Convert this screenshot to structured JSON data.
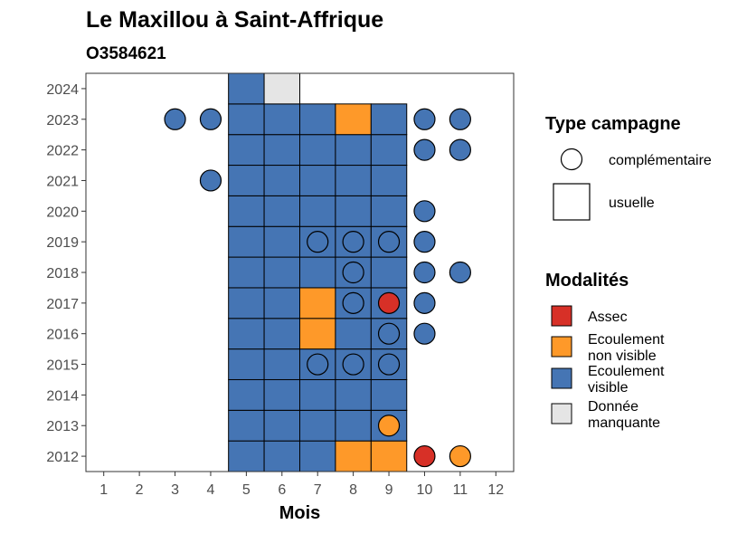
{
  "chart_data": {
    "type": "heatmap",
    "title": "Le Maxillou à Saint-Affrique",
    "subtitle": "O3584621",
    "xlabel": "Mois",
    "ylabel": "",
    "x_ticks": [
      1,
      2,
      3,
      4,
      5,
      6,
      7,
      8,
      9,
      10,
      11,
      12
    ],
    "y_ticks": [
      2012,
      2013,
      2014,
      2015,
      2016,
      2017,
      2018,
      2019,
      2020,
      2021,
      2022,
      2023,
      2024
    ],
    "xlim": [
      0.5,
      12.5
    ],
    "ylim": [
      2011.5,
      2024.5
    ],
    "colors": {
      "assec": "#d73027",
      "ecoulement_non_visible": "#fe9929",
      "ecoulement_visible": "#4575b4",
      "donnee_manquante": "#e5e5e5"
    },
    "legend_shape": {
      "title": "Type campagne",
      "items": [
        {
          "label": "complémentaire",
          "shape": "circle"
        },
        {
          "label": "usuelle",
          "shape": "square"
        }
      ]
    },
    "legend_color": {
      "title": "Modalités",
      "items": [
        {
          "label_lines": [
            "Assec"
          ],
          "color_key": "assec"
        },
        {
          "label_lines": [
            "Ecoulement",
            "non visible"
          ],
          "color_key": "ecoulement_non_visible"
        },
        {
          "label_lines": [
            "Ecoulement",
            "visible"
          ],
          "color_key": "ecoulement_visible"
        },
        {
          "label_lines": [
            "Donnée",
            "manquante"
          ],
          "color_key": "donnee_manquante"
        }
      ]
    },
    "usuelle": [
      {
        "year": 2012,
        "month": 5,
        "m": "ecoulement_visible"
      },
      {
        "year": 2012,
        "month": 6,
        "m": "ecoulement_visible"
      },
      {
        "year": 2012,
        "month": 7,
        "m": "ecoulement_visible"
      },
      {
        "year": 2012,
        "month": 8,
        "m": "ecoulement_non_visible"
      },
      {
        "year": 2012,
        "month": 9,
        "m": "ecoulement_non_visible"
      },
      {
        "year": 2013,
        "month": 5,
        "m": "ecoulement_visible"
      },
      {
        "year": 2013,
        "month": 6,
        "m": "ecoulement_visible"
      },
      {
        "year": 2013,
        "month": 7,
        "m": "ecoulement_visible"
      },
      {
        "year": 2013,
        "month": 8,
        "m": "ecoulement_visible"
      },
      {
        "year": 2013,
        "month": 9,
        "m": "ecoulement_visible"
      },
      {
        "year": 2014,
        "month": 5,
        "m": "ecoulement_visible"
      },
      {
        "year": 2014,
        "month": 6,
        "m": "ecoulement_visible"
      },
      {
        "year": 2014,
        "month": 7,
        "m": "ecoulement_visible"
      },
      {
        "year": 2014,
        "month": 8,
        "m": "ecoulement_visible"
      },
      {
        "year": 2014,
        "month": 9,
        "m": "ecoulement_visible"
      },
      {
        "year": 2015,
        "month": 5,
        "m": "ecoulement_visible"
      },
      {
        "year": 2015,
        "month": 6,
        "m": "ecoulement_visible"
      },
      {
        "year": 2015,
        "month": 7,
        "m": "ecoulement_visible"
      },
      {
        "year": 2015,
        "month": 8,
        "m": "ecoulement_visible"
      },
      {
        "year": 2015,
        "month": 9,
        "m": "ecoulement_visible"
      },
      {
        "year": 2016,
        "month": 5,
        "m": "ecoulement_visible"
      },
      {
        "year": 2016,
        "month": 6,
        "m": "ecoulement_visible"
      },
      {
        "year": 2016,
        "month": 7,
        "m": "ecoulement_non_visible"
      },
      {
        "year": 2016,
        "month": 8,
        "m": "ecoulement_visible"
      },
      {
        "year": 2016,
        "month": 9,
        "m": "ecoulement_visible"
      },
      {
        "year": 2017,
        "month": 5,
        "m": "ecoulement_visible"
      },
      {
        "year": 2017,
        "month": 6,
        "m": "ecoulement_visible"
      },
      {
        "year": 2017,
        "month": 7,
        "m": "ecoulement_non_visible"
      },
      {
        "year": 2017,
        "month": 8,
        "m": "ecoulement_visible"
      },
      {
        "year": 2017,
        "month": 9,
        "m": "ecoulement_visible"
      },
      {
        "year": 2018,
        "month": 5,
        "m": "ecoulement_visible"
      },
      {
        "year": 2018,
        "month": 6,
        "m": "ecoulement_visible"
      },
      {
        "year": 2018,
        "month": 7,
        "m": "ecoulement_visible"
      },
      {
        "year": 2018,
        "month": 8,
        "m": "ecoulement_visible"
      },
      {
        "year": 2018,
        "month": 9,
        "m": "ecoulement_visible"
      },
      {
        "year": 2019,
        "month": 5,
        "m": "ecoulement_visible"
      },
      {
        "year": 2019,
        "month": 6,
        "m": "ecoulement_visible"
      },
      {
        "year": 2019,
        "month": 7,
        "m": "ecoulement_visible"
      },
      {
        "year": 2019,
        "month": 8,
        "m": "ecoulement_visible"
      },
      {
        "year": 2019,
        "month": 9,
        "m": "ecoulement_visible"
      },
      {
        "year": 2020,
        "month": 5,
        "m": "ecoulement_visible"
      },
      {
        "year": 2020,
        "month": 6,
        "m": "ecoulement_visible"
      },
      {
        "year": 2020,
        "month": 7,
        "m": "ecoulement_visible"
      },
      {
        "year": 2020,
        "month": 8,
        "m": "ecoulement_visible"
      },
      {
        "year": 2020,
        "month": 9,
        "m": "ecoulement_visible"
      },
      {
        "year": 2021,
        "month": 5,
        "m": "ecoulement_visible"
      },
      {
        "year": 2021,
        "month": 6,
        "m": "ecoulement_visible"
      },
      {
        "year": 2021,
        "month": 7,
        "m": "ecoulement_visible"
      },
      {
        "year": 2021,
        "month": 8,
        "m": "ecoulement_visible"
      },
      {
        "year": 2021,
        "month": 9,
        "m": "ecoulement_visible"
      },
      {
        "year": 2022,
        "month": 5,
        "m": "ecoulement_visible"
      },
      {
        "year": 2022,
        "month": 6,
        "m": "ecoulement_visible"
      },
      {
        "year": 2022,
        "month": 7,
        "m": "ecoulement_visible"
      },
      {
        "year": 2022,
        "month": 8,
        "m": "ecoulement_visible"
      },
      {
        "year": 2022,
        "month": 9,
        "m": "ecoulement_visible"
      },
      {
        "year": 2023,
        "month": 5,
        "m": "ecoulement_visible"
      },
      {
        "year": 2023,
        "month": 6,
        "m": "ecoulement_visible"
      },
      {
        "year": 2023,
        "month": 7,
        "m": "ecoulement_visible"
      },
      {
        "year": 2023,
        "month": 8,
        "m": "ecoulement_non_visible"
      },
      {
        "year": 2023,
        "month": 9,
        "m": "ecoulement_visible"
      },
      {
        "year": 2024,
        "month": 5,
        "m": "ecoulement_visible"
      },
      {
        "year": 2024,
        "month": 6,
        "m": "donnee_manquante"
      }
    ],
    "complementaire": [
      {
        "year": 2012,
        "month": 10,
        "m": "assec"
      },
      {
        "year": 2012,
        "month": 11,
        "m": "ecoulement_non_visible"
      },
      {
        "year": 2013,
        "month": 9,
        "m": "ecoulement_non_visible"
      },
      {
        "year": 2015,
        "month": 7,
        "m": "ecoulement_visible"
      },
      {
        "year": 2015,
        "month": 8,
        "m": "ecoulement_visible"
      },
      {
        "year": 2015,
        "month": 9,
        "m": "ecoulement_visible"
      },
      {
        "year": 2016,
        "month": 9,
        "m": "ecoulement_visible"
      },
      {
        "year": 2016,
        "month": 10,
        "m": "ecoulement_visible"
      },
      {
        "year": 2017,
        "month": 8,
        "m": "ecoulement_visible"
      },
      {
        "year": 2017,
        "month": 9,
        "m": "assec"
      },
      {
        "year": 2017,
        "month": 10,
        "m": "ecoulement_visible"
      },
      {
        "year": 2018,
        "month": 8,
        "m": "ecoulement_visible"
      },
      {
        "year": 2018,
        "month": 10,
        "m": "ecoulement_visible"
      },
      {
        "year": 2018,
        "month": 11,
        "m": "ecoulement_visible"
      },
      {
        "year": 2019,
        "month": 7,
        "m": "ecoulement_visible"
      },
      {
        "year": 2019,
        "month": 8,
        "m": "ecoulement_visible"
      },
      {
        "year": 2019,
        "month": 9,
        "m": "ecoulement_visible"
      },
      {
        "year": 2019,
        "month": 10,
        "m": "ecoulement_visible"
      },
      {
        "year": 2020,
        "month": 10,
        "m": "ecoulement_visible"
      },
      {
        "year": 2021,
        "month": 4,
        "m": "ecoulement_visible"
      },
      {
        "year": 2022,
        "month": 10,
        "m": "ecoulement_visible"
      },
      {
        "year": 2022,
        "month": 11,
        "m": "ecoulement_visible"
      },
      {
        "year": 2023,
        "month": 3,
        "m": "ecoulement_visible"
      },
      {
        "year": 2023,
        "month": 4,
        "m": "ecoulement_visible"
      },
      {
        "year": 2023,
        "month": 10,
        "m": "ecoulement_visible"
      },
      {
        "year": 2023,
        "month": 11,
        "m": "ecoulement_visible"
      }
    ]
  }
}
